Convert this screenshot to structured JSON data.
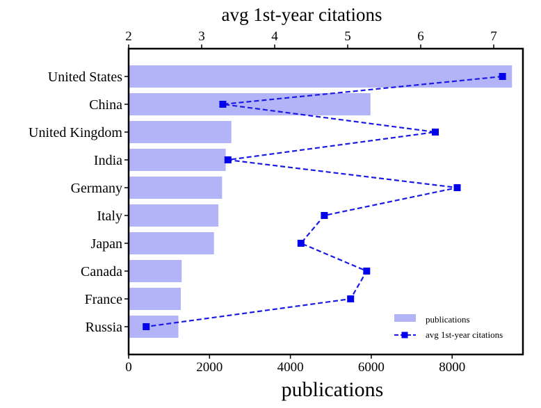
{
  "colors": {
    "bar": "#b3b3f7",
    "line": "#1a1ae6",
    "marker": "#0000ee",
    "frame": "#000000"
  },
  "chart_data": {
    "type": "bar",
    "orientation": "horizontal",
    "categories": [
      "United States",
      "China",
      "United Kingdom",
      "India",
      "Germany",
      "Italy",
      "Japan",
      "Canada",
      "France",
      "Russia"
    ],
    "series": [
      {
        "name": "publications",
        "type": "bar",
        "axis": "bottom",
        "values": [
          9480,
          5980,
          2540,
          2400,
          2310,
          2220,
          2110,
          1310,
          1290,
          1230
        ]
      },
      {
        "name": "avg 1st-year citations",
        "type": "line",
        "axis": "top",
        "style": "dashed",
        "marker": "square",
        "values": [
          7.12,
          3.29,
          6.2,
          3.36,
          6.5,
          4.68,
          4.36,
          5.26,
          5.04,
          2.24
        ]
      }
    ],
    "xlabel_bottom": "publications",
    "xlabel_top": "avg 1st-year citations",
    "xlim_bottom": [
      0,
      9750
    ],
    "xlim_top": [
      2,
      7.4
    ],
    "xticks_bottom": [
      0,
      2000,
      4000,
      6000,
      8000
    ],
    "xticks_top": [
      2,
      3,
      4,
      5,
      6,
      7
    ],
    "legend_position": "lower-right",
    "grid": false
  }
}
